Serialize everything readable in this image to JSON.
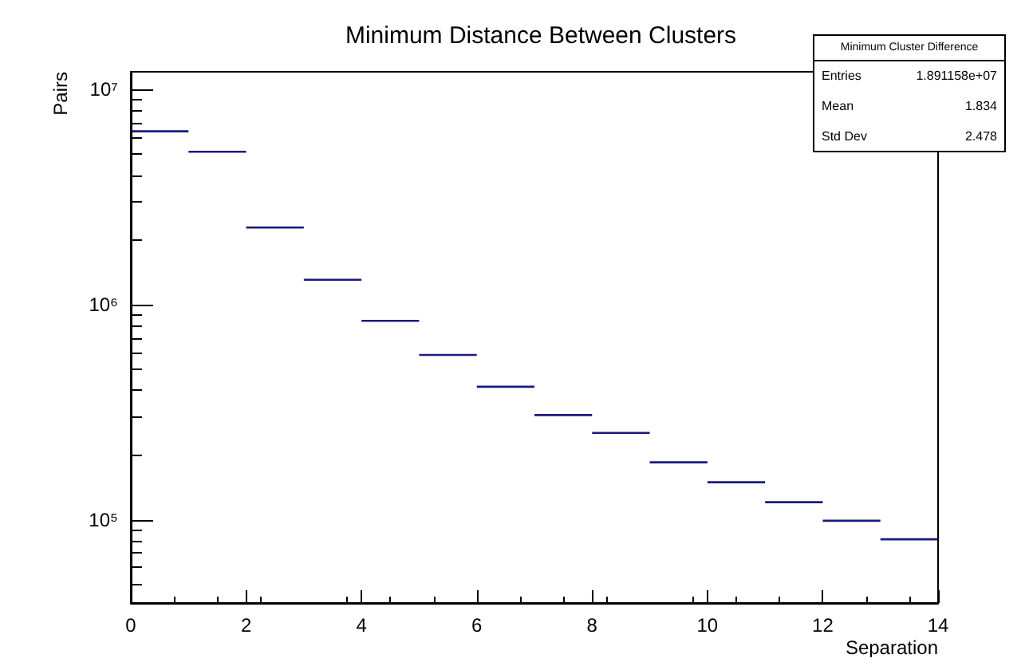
{
  "chart_data": {
    "type": "histogram",
    "title": "Minimum Distance Between Clusters",
    "xlabel": "Separation",
    "ylabel": "Pairs",
    "bins": [
      0,
      1,
      2,
      3,
      4,
      5,
      6,
      7,
      8,
      9,
      10,
      11,
      12,
      13,
      14
    ],
    "values": [
      6470000,
      5200000,
      2310000,
      1320000,
      850000,
      590000,
      420000,
      310000,
      256000,
      187000,
      151000,
      122000,
      100000,
      82000
    ],
    "color": "#1a1a80",
    "log": "y",
    "grid": false,
    "xlim": [
      0,
      14
    ],
    "xticks": [
      0,
      2,
      4,
      6,
      8,
      10,
      12,
      14
    ],
    "ylim": [
      41000,
      12100000
    ],
    "yticks": [
      {
        "value": 100000,
        "label": "10⁵"
      },
      {
        "value": 1000000,
        "label": "10⁶"
      },
      {
        "value": 10000000,
        "label": "10⁷"
      }
    ],
    "annotations": [
      "Minimum Cluster Difference",
      "Entries",
      "1.891158e+07",
      "Mean",
      "1.834",
      "Std Dev",
      "2.478"
    ]
  }
}
